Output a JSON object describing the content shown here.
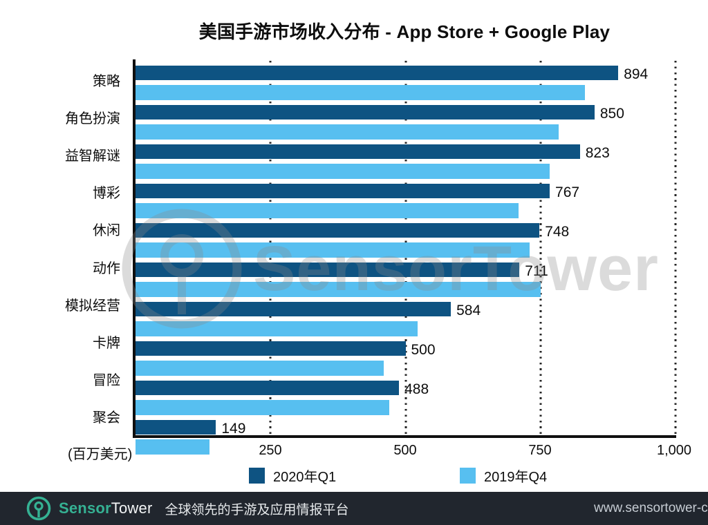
{
  "title": "美国手游市场收入分布 - App Store + Google Play",
  "chart_data": {
    "type": "bar",
    "orientation": "horizontal",
    "title": "美国手游市场收入分布 - App Store + Google Play",
    "categories": [
      "策略",
      "角色扮演",
      "益智解谜",
      "博彩",
      "休闲",
      "动作",
      "模拟经营",
      "卡牌",
      "冒险",
      "聚会"
    ],
    "series": [
      {
        "name": "2020年Q1",
        "color": "#0e5382",
        "values": [
          894,
          850,
          823,
          767,
          748,
          711,
          584,
          500,
          488,
          149
        ],
        "value_labels_shown": true
      },
      {
        "name": "2019年Q4",
        "color": "#57bff0",
        "values": [
          832,
          784,
          767,
          709,
          730,
          750,
          522,
          460,
          470,
          137
        ],
        "value_labels_shown": false
      }
    ],
    "xlabel": "(百万美元)",
    "x_ticks": [
      "250",
      "500",
      "750",
      "1,000"
    ],
    "xlim": [
      0,
      1000
    ],
    "grid": "dotted-vertical-gridlines",
    "legend_position": "bottom"
  },
  "axis": {
    "unit_label": "(百万美元)",
    "ticks": [
      "250",
      "500",
      "750",
      "1,000"
    ]
  },
  "legend": {
    "items": [
      {
        "label": "2020年Q1",
        "color": "#0e5382"
      },
      {
        "label": "2019年Q4",
        "color": "#57bff0"
      }
    ]
  },
  "watermark": {
    "text": "SensorTower"
  },
  "footer": {
    "brand_sensor": "Sensor",
    "brand_tower": "Tower",
    "tagline": "全球领先的手游及应用情报平台",
    "url": "www.sensortower-c",
    "background": "#21262e",
    "accent_green": "#35b193"
  }
}
